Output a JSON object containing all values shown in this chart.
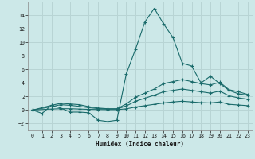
{
  "xlabel": "Humidex (Indice chaleur)",
  "bg_color": "#cce8e8",
  "grid_color": "#b8d4d4",
  "line_color": "#1a6b6b",
  "xlim": [
    -0.5,
    23.5
  ],
  "ylim": [
    -3,
    16
  ],
  "xticks": [
    0,
    1,
    2,
    3,
    4,
    5,
    6,
    7,
    8,
    9,
    10,
    11,
    12,
    13,
    14,
    15,
    16,
    17,
    18,
    19,
    20,
    21,
    22,
    23
  ],
  "yticks": [
    -2,
    0,
    2,
    4,
    6,
    8,
    10,
    12,
    14
  ],
  "line1_x": [
    0,
    1,
    2,
    3,
    4,
    5,
    6,
    7,
    8,
    9,
    10,
    11,
    12,
    13,
    14,
    15,
    16,
    17,
    18,
    19,
    20,
    21,
    22,
    23
  ],
  "line1_y": [
    0,
    -0.5,
    0.7,
    0.3,
    -0.3,
    -0.3,
    -0.4,
    -1.5,
    -1.7,
    -1.5,
    5.3,
    9.0,
    13.0,
    15.0,
    12.7,
    10.7,
    6.9,
    6.5,
    4.0,
    5.0,
    3.9,
    2.9,
    2.4,
    2.2
  ],
  "line2_x": [
    0,
    2,
    3,
    4,
    5,
    6,
    7,
    8,
    9,
    10,
    11,
    12,
    13,
    14,
    15,
    16,
    17,
    18,
    19,
    20,
    21,
    22,
    23
  ],
  "line2_y": [
    0,
    0.7,
    1.0,
    0.9,
    0.8,
    0.5,
    0.3,
    0.2,
    0.2,
    0.9,
    1.9,
    2.5,
    3.1,
    3.9,
    4.2,
    4.5,
    4.2,
    3.9,
    3.7,
    4.1,
    3.0,
    2.7,
    2.3
  ],
  "line3_x": [
    0,
    2,
    3,
    4,
    5,
    6,
    7,
    8,
    9,
    10,
    11,
    12,
    13,
    14,
    15,
    16,
    17,
    18,
    19,
    20,
    21,
    22,
    23
  ],
  "line3_y": [
    0,
    0.5,
    0.8,
    0.7,
    0.55,
    0.35,
    0.22,
    0.15,
    0.15,
    0.6,
    1.3,
    1.75,
    2.2,
    2.7,
    2.9,
    3.1,
    2.9,
    2.7,
    2.5,
    2.8,
    2.1,
    1.8,
    1.6
  ],
  "line4_x": [
    0,
    2,
    3,
    4,
    5,
    6,
    7,
    8,
    9,
    10,
    11,
    12,
    13,
    14,
    15,
    16,
    17,
    18,
    19,
    20,
    21,
    22,
    23
  ],
  "line4_y": [
    0,
    0.15,
    0.2,
    0.2,
    0.15,
    0.1,
    0.08,
    0.06,
    0.06,
    0.18,
    0.45,
    0.65,
    0.85,
    1.05,
    1.2,
    1.3,
    1.2,
    1.1,
    1.05,
    1.2,
    0.85,
    0.75,
    0.65
  ]
}
